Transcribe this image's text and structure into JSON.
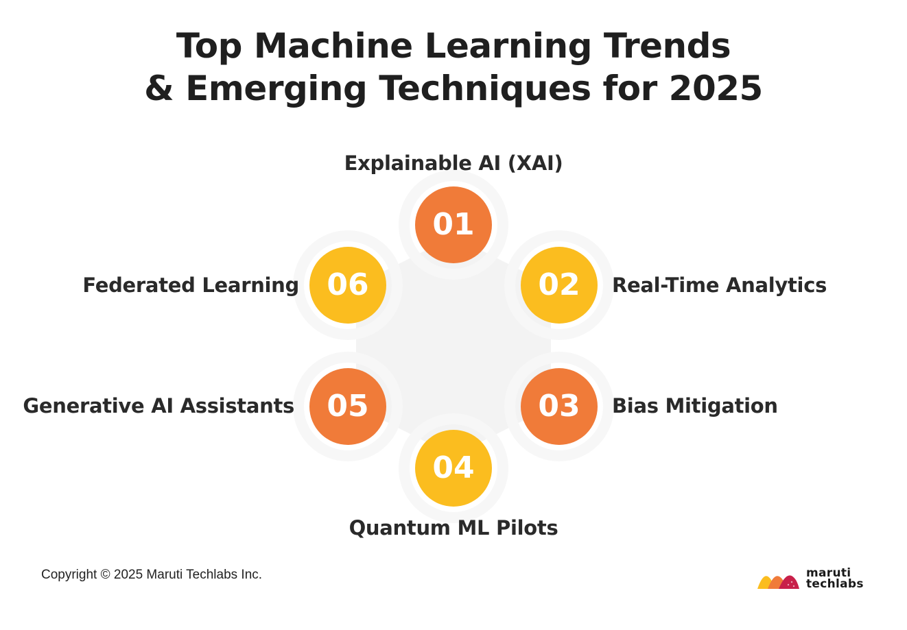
{
  "title": {
    "line1": "Top Machine Learning Trends",
    "line2": "& Emerging Techniques for 2025"
  },
  "items": [
    {
      "number": "01",
      "label": "Explainable AI (XAI)",
      "color": "#f07b39"
    },
    {
      "number": "02",
      "label": "Real-Time Analytics",
      "color": "#fbbd1f"
    },
    {
      "number": "03",
      "label": "Bias Mitigation",
      "color": "#f07b39"
    },
    {
      "number": "04",
      "label": "Quantum ML Pilots",
      "color": "#fbbd1f"
    },
    {
      "number": "05",
      "label": "Generative AI Assistants",
      "color": "#f07b39"
    },
    {
      "number": "06",
      "label": "Federated Learning",
      "color": "#fbbd1f"
    }
  ],
  "footer": {
    "copyright": "Copyright © 2025 Maruti Techlabs Inc."
  },
  "logo": {
    "line1": "maruti",
    "line2": "techlabs"
  },
  "colors": {
    "orange": "#f07b39",
    "yellow": "#fbbd1f",
    "hub": "#f2f2f2"
  }
}
